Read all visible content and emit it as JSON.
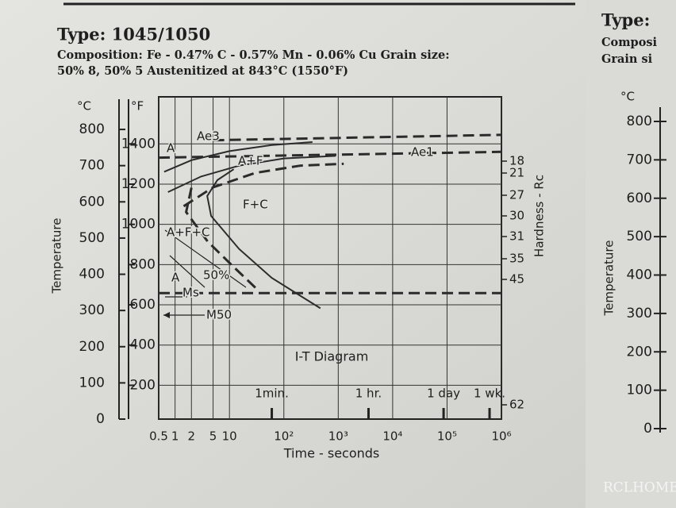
{
  "header": {
    "title": "Type: 1045/1050",
    "composition": [
      "Composition: Fe - 0.47% C - 0.57% Mn - 0.06% Cu Grain size:",
      "50% 8, 50% 5 Austenitized at 843°C (1550°F)"
    ]
  },
  "chart_data": {
    "type": "line",
    "xlabel": "Time - seconds",
    "ylabel": "Temperature",
    "y_unit": "°C",
    "y2_unit": "°F",
    "hardness_label": "Hardness - Rc",
    "diagram_label": "I-T Diagram",
    "log_x": true,
    "grid": true,
    "color": "#2b2b2b",
    "xlim": [
      0.5,
      1000000
    ],
    "xticks": [
      0.5,
      1,
      2,
      5,
      10,
      {
        "value": 100,
        "label": "10²"
      },
      {
        "value": 1000,
        "label": "10³"
      },
      {
        "value": 10000,
        "label": "10⁴"
      },
      {
        "value": 100000,
        "label": "10⁵"
      },
      {
        "value": 1000000,
        "label": "10⁶"
      }
    ],
    "ylim": [
      0,
      890
    ],
    "yticks": [
      0,
      100,
      200,
      300,
      400,
      500,
      600,
      700,
      800
    ],
    "y2lim": [
      32,
      1634
    ],
    "y2ticks": [
      200,
      400,
      600,
      800,
      1000,
      1200,
      1400
    ],
    "series": [
      {
        "dash": true,
        "x": [
          5,
          1000000
        ],
        "values": [
          770,
          785
        ]
      },
      {
        "dash": true,
        "x": [
          0.5,
          1000000
        ],
        "values": [
          722,
          738
        ]
      },
      {
        "dash": true,
        "x": [
          0.5,
          1000000
        ],
        "values": [
          348,
          348
        ]
      },
      {
        "dash": false,
        "x": [
          0.63,
          2,
          10,
          60,
          335
        ],
        "values": [
          683,
          715,
          740,
          757,
          765
        ]
      },
      {
        "dash": false,
        "x": [
          0.74,
          3,
          15,
          100,
          900
        ],
        "values": [
          627,
          670,
          700,
          720,
          727
        ]
      },
      {
        "dash": true,
        "x": [
          1.44,
          5,
          30,
          200,
          1260
        ],
        "values": [
          588,
          640,
          680,
          700,
          705
        ]
      },
      {
        "dash": false,
        "x": [
          12,
          6,
          3.9,
          4.6,
          15,
          60,
          470
        ],
        "values": [
          690,
          660,
          616,
          561,
          470,
          390,
          306
        ]
      },
      {
        "dash": true,
        "x": [
          2,
          1.6,
          4,
          12,
          33
        ],
        "values": [
          639,
          572,
          490,
          420,
          357
        ]
      }
    ],
    "annotations": [
      "A",
      "Ae3",
      "A+F",
      "Ae1",
      "F+C",
      "A+F+C",
      "A",
      "50%",
      "Ms",
      "M50"
    ],
    "hardness": [
      18,
      21,
      27,
      30,
      31,
      35,
      45,
      62
    ],
    "time_marks": [
      {
        "value": 60,
        "label": "1min."
      },
      {
        "value": 3600,
        "label": "1 hr."
      },
      {
        "value": 86400,
        "label": "1 day"
      },
      {
        "value": 604800,
        "label": "1 wk."
      }
    ]
  },
  "right_page": {
    "lines": [
      "Type:",
      "Composi",
      "Grain si"
    ],
    "unit": "°C",
    "ylabel": "Temperature",
    "ylim": [
      0,
      800
    ],
    "yticks": [
      0,
      100,
      200,
      300,
      400,
      500,
      600,
      700,
      800
    ]
  },
  "watermark": "RCLHOME.COM"
}
